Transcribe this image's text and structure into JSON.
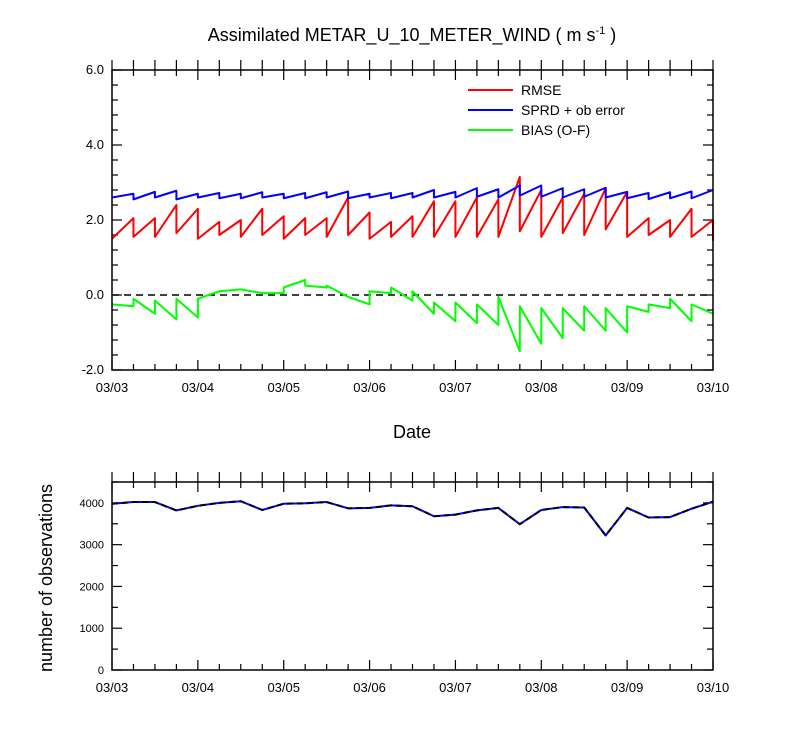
{
  "chart_data": [
    {
      "type": "line",
      "title_main": "Assimilated METAR_U_10_METER_WIND ( m s",
      "title_sup": "-1",
      "title_tail": " )",
      "xlabel": "Date",
      "ylabel": "",
      "xlim": [
        0,
        7
      ],
      "ylim": [
        -2.0,
        6.0
      ],
      "x_ticks": [
        0,
        1,
        2,
        3,
        4,
        5,
        6,
        7
      ],
      "x_tick_labels": [
        "03/03",
        "03/04",
        "03/05",
        "03/06",
        "03/07",
        "03/08",
        "03/09",
        "03/10"
      ],
      "y_ticks": [
        -2.0,
        0.0,
        2.0,
        4.0,
        6.0
      ],
      "y_tick_labels": [
        "-2.0",
        "0.0",
        "2.0",
        "4.0",
        "6.0"
      ],
      "reference_line_y": 0.0,
      "legend_position": "top-right",
      "series": [
        {
          "name": "RMSE",
          "color": "#ff0000",
          "points": [
            [
              0,
              1.5
            ],
            [
              0.25,
              2.05
            ],
            [
              0.25,
              1.55
            ],
            [
              0.5,
              2.05
            ],
            [
              0.5,
              1.55
            ],
            [
              0.75,
              2.4
            ],
            [
              0.75,
              1.65
            ],
            [
              1,
              2.3
            ],
            [
              1,
              1.5
            ],
            [
              1.25,
              1.95
            ],
            [
              1.25,
              1.6
            ],
            [
              1.5,
              2.0
            ],
            [
              1.5,
              1.55
            ],
            [
              1.75,
              2.3
            ],
            [
              1.75,
              1.6
            ],
            [
              2,
              2.1
            ],
            [
              2,
              1.5
            ],
            [
              2.25,
              2.05
            ],
            [
              2.25,
              1.6
            ],
            [
              2.5,
              2.05
            ],
            [
              2.5,
              1.55
            ],
            [
              2.75,
              2.6
            ],
            [
              2.75,
              1.6
            ],
            [
              3,
              2.2
            ],
            [
              3,
              1.5
            ],
            [
              3.25,
              1.95
            ],
            [
              3.25,
              1.55
            ],
            [
              3.5,
              2.1
            ],
            [
              3.5,
              1.55
            ],
            [
              3.75,
              2.5
            ],
            [
              3.75,
              1.55
            ],
            [
              4,
              2.5
            ],
            [
              4,
              1.55
            ],
            [
              4.25,
              2.6
            ],
            [
              4.25,
              1.55
            ],
            [
              4.5,
              2.55
            ],
            [
              4.5,
              1.55
            ],
            [
              4.75,
              3.15
            ],
            [
              4.75,
              1.7
            ],
            [
              5,
              2.8
            ],
            [
              5,
              1.55
            ],
            [
              5.25,
              2.6
            ],
            [
              5.25,
              1.65
            ],
            [
              5.5,
              2.7
            ],
            [
              5.5,
              1.6
            ],
            [
              5.75,
              2.85
            ],
            [
              5.75,
              1.75
            ],
            [
              6,
              2.75
            ],
            [
              6,
              1.55
            ],
            [
              6.25,
              2.05
            ],
            [
              6.25,
              1.6
            ],
            [
              6.5,
              2.0
            ],
            [
              6.5,
              1.55
            ],
            [
              6.75,
              2.3
            ],
            [
              6.75,
              1.55
            ],
            [
              7,
              2.0
            ],
            [
              7,
              1.45
            ]
          ]
        },
        {
          "name": "SPRD + ob error",
          "color": "#0000ff",
          "points": [
            [
              0,
              2.6
            ],
            [
              0.25,
              2.7
            ],
            [
              0.25,
              2.55
            ],
            [
              0.5,
              2.75
            ],
            [
              0.5,
              2.6
            ],
            [
              0.75,
              2.78
            ],
            [
              0.75,
              2.55
            ],
            [
              1,
              2.7
            ],
            [
              1,
              2.6
            ],
            [
              1.25,
              2.72
            ],
            [
              1.25,
              2.58
            ],
            [
              1.5,
              2.7
            ],
            [
              1.5,
              2.58
            ],
            [
              1.75,
              2.74
            ],
            [
              1.75,
              2.6
            ],
            [
              2,
              2.7
            ],
            [
              2,
              2.58
            ],
            [
              2.25,
              2.72
            ],
            [
              2.25,
              2.58
            ],
            [
              2.5,
              2.74
            ],
            [
              2.5,
              2.6
            ],
            [
              2.75,
              2.76
            ],
            [
              2.75,
              2.58
            ],
            [
              3,
              2.7
            ],
            [
              3,
              2.6
            ],
            [
              3.25,
              2.72
            ],
            [
              3.25,
              2.58
            ],
            [
              3.5,
              2.72
            ],
            [
              3.5,
              2.6
            ],
            [
              3.75,
              2.8
            ],
            [
              3.75,
              2.6
            ],
            [
              4,
              2.75
            ],
            [
              4,
              2.6
            ],
            [
              4.25,
              2.85
            ],
            [
              4.25,
              2.62
            ],
            [
              4.5,
              2.82
            ],
            [
              4.5,
              2.6
            ],
            [
              4.75,
              2.92
            ],
            [
              4.75,
              2.65
            ],
            [
              5,
              2.92
            ],
            [
              5,
              2.62
            ],
            [
              5.25,
              2.85
            ],
            [
              5.25,
              2.6
            ],
            [
              5.5,
              2.82
            ],
            [
              5.5,
              2.62
            ],
            [
              5.75,
              2.86
            ],
            [
              5.75,
              2.6
            ],
            [
              6,
              2.75
            ],
            [
              6,
              2.58
            ],
            [
              6.25,
              2.72
            ],
            [
              6.25,
              2.56
            ],
            [
              6.5,
              2.74
            ],
            [
              6.5,
              2.58
            ],
            [
              6.75,
              2.76
            ],
            [
              6.75,
              2.58
            ],
            [
              7,
              2.8
            ]
          ]
        },
        {
          "name": "BIAS (O-F)",
          "color": "#00ff00",
          "points": [
            [
              0,
              -0.25
            ],
            [
              0.25,
              -0.3
            ],
            [
              0.25,
              -0.1
            ],
            [
              0.5,
              -0.5
            ],
            [
              0.5,
              -0.15
            ],
            [
              0.75,
              -0.65
            ],
            [
              0.75,
              -0.1
            ],
            [
              1,
              -0.6
            ],
            [
              1,
              -0.1
            ],
            [
              1.25,
              0.1
            ],
            [
              1.5,
              0.15
            ],
            [
              1.75,
              0.05
            ],
            [
              2,
              0.05
            ],
            [
              2,
              0.2
            ],
            [
              2.25,
              0.4
            ],
            [
              2.25,
              0.25
            ],
            [
              2.5,
              0.2
            ],
            [
              2.5,
              0.25
            ],
            [
              2.75,
              -0.05
            ],
            [
              3,
              -0.25
            ],
            [
              3,
              0.1
            ],
            [
              3.25,
              0.05
            ],
            [
              3.25,
              0.2
            ],
            [
              3.5,
              -0.15
            ],
            [
              3.5,
              0.1
            ],
            [
              3.75,
              -0.5
            ],
            [
              3.75,
              -0.2
            ],
            [
              4,
              -0.7
            ],
            [
              4,
              -0.2
            ],
            [
              4.25,
              -0.75
            ],
            [
              4.25,
              -0.25
            ],
            [
              4.5,
              -0.8
            ],
            [
              4.5,
              -0.05
            ],
            [
              4.75,
              -1.5
            ],
            [
              4.75,
              -0.3
            ],
            [
              5,
              -1.3
            ],
            [
              5,
              -0.35
            ],
            [
              5.25,
              -1.15
            ],
            [
              5.25,
              -0.35
            ],
            [
              5.5,
              -0.95
            ],
            [
              5.5,
              -0.3
            ],
            [
              5.75,
              -0.95
            ],
            [
              5.75,
              -0.35
            ],
            [
              6,
              -1.0
            ],
            [
              6,
              -0.3
            ],
            [
              6.25,
              -0.45
            ],
            [
              6.25,
              -0.25
            ],
            [
              6.5,
              -0.35
            ],
            [
              6.5,
              -0.1
            ],
            [
              6.75,
              -0.7
            ],
            [
              6.75,
              -0.25
            ],
            [
              7,
              -0.5
            ]
          ]
        }
      ]
    },
    {
      "type": "line",
      "ylabel": "number of observations",
      "xlim": [
        0,
        7
      ],
      "ylim": [
        0,
        4500
      ],
      "x_ticks": [
        0,
        1,
        2,
        3,
        4,
        5,
        6,
        7
      ],
      "x_tick_labels": [
        "03/03",
        "03/04",
        "03/05",
        "03/06",
        "03/07",
        "03/08",
        "03/09",
        "03/10"
      ],
      "y_ticks": [
        0,
        1000,
        2000,
        3000,
        4000
      ],
      "y_tick_labels": [
        "0",
        "1000",
        "2000",
        "3000",
        "4000"
      ],
      "series": [
        {
          "color": "#0000ff",
          "style": "solid",
          "points": [
            [
              0,
              3980
            ],
            [
              0.25,
              4020
            ],
            [
              0.5,
              4020
            ],
            [
              0.75,
              3820
            ],
            [
              1,
              3930
            ],
            [
              1.25,
              4000
            ],
            [
              1.5,
              4040
            ],
            [
              1.75,
              3830
            ],
            [
              2,
              3980
            ],
            [
              2.25,
              3990
            ],
            [
              2.5,
              4020
            ],
            [
              2.75,
              3870
            ],
            [
              3,
              3880
            ],
            [
              3.25,
              3940
            ],
            [
              3.5,
              3920
            ],
            [
              3.75,
              3680
            ],
            [
              4,
              3720
            ],
            [
              4.25,
              3820
            ],
            [
              4.5,
              3880
            ],
            [
              4.75,
              3490
            ],
            [
              5,
              3830
            ],
            [
              5.25,
              3900
            ],
            [
              5.5,
              3890
            ],
            [
              5.75,
              3220
            ],
            [
              6,
              3880
            ],
            [
              6.25,
              3650
            ],
            [
              6.5,
              3660
            ],
            [
              6.75,
              3860
            ],
            [
              7,
              4030
            ]
          ]
        },
        {
          "color": "#000000",
          "style": "dashed",
          "points": [
            [
              0,
              3980
            ],
            [
              0.25,
              4020
            ],
            [
              0.5,
              4020
            ],
            [
              0.75,
              3820
            ],
            [
              1,
              3930
            ],
            [
              1.25,
              4000
            ],
            [
              1.5,
              4040
            ],
            [
              1.75,
              3830
            ],
            [
              2,
              3980
            ],
            [
              2.25,
              3990
            ],
            [
              2.5,
              4020
            ],
            [
              2.75,
              3870
            ],
            [
              3,
              3880
            ],
            [
              3.25,
              3940
            ],
            [
              3.5,
              3920
            ],
            [
              3.75,
              3680
            ],
            [
              4,
              3720
            ],
            [
              4.25,
              3820
            ],
            [
              4.5,
              3880
            ],
            [
              4.75,
              3490
            ],
            [
              5,
              3830
            ],
            [
              5.25,
              3900
            ],
            [
              5.5,
              3890
            ],
            [
              5.75,
              3220
            ],
            [
              6,
              3880
            ],
            [
              6.25,
              3650
            ],
            [
              6.5,
              3660
            ],
            [
              6.75,
              3860
            ],
            [
              7,
              4030
            ]
          ]
        }
      ]
    }
  ]
}
